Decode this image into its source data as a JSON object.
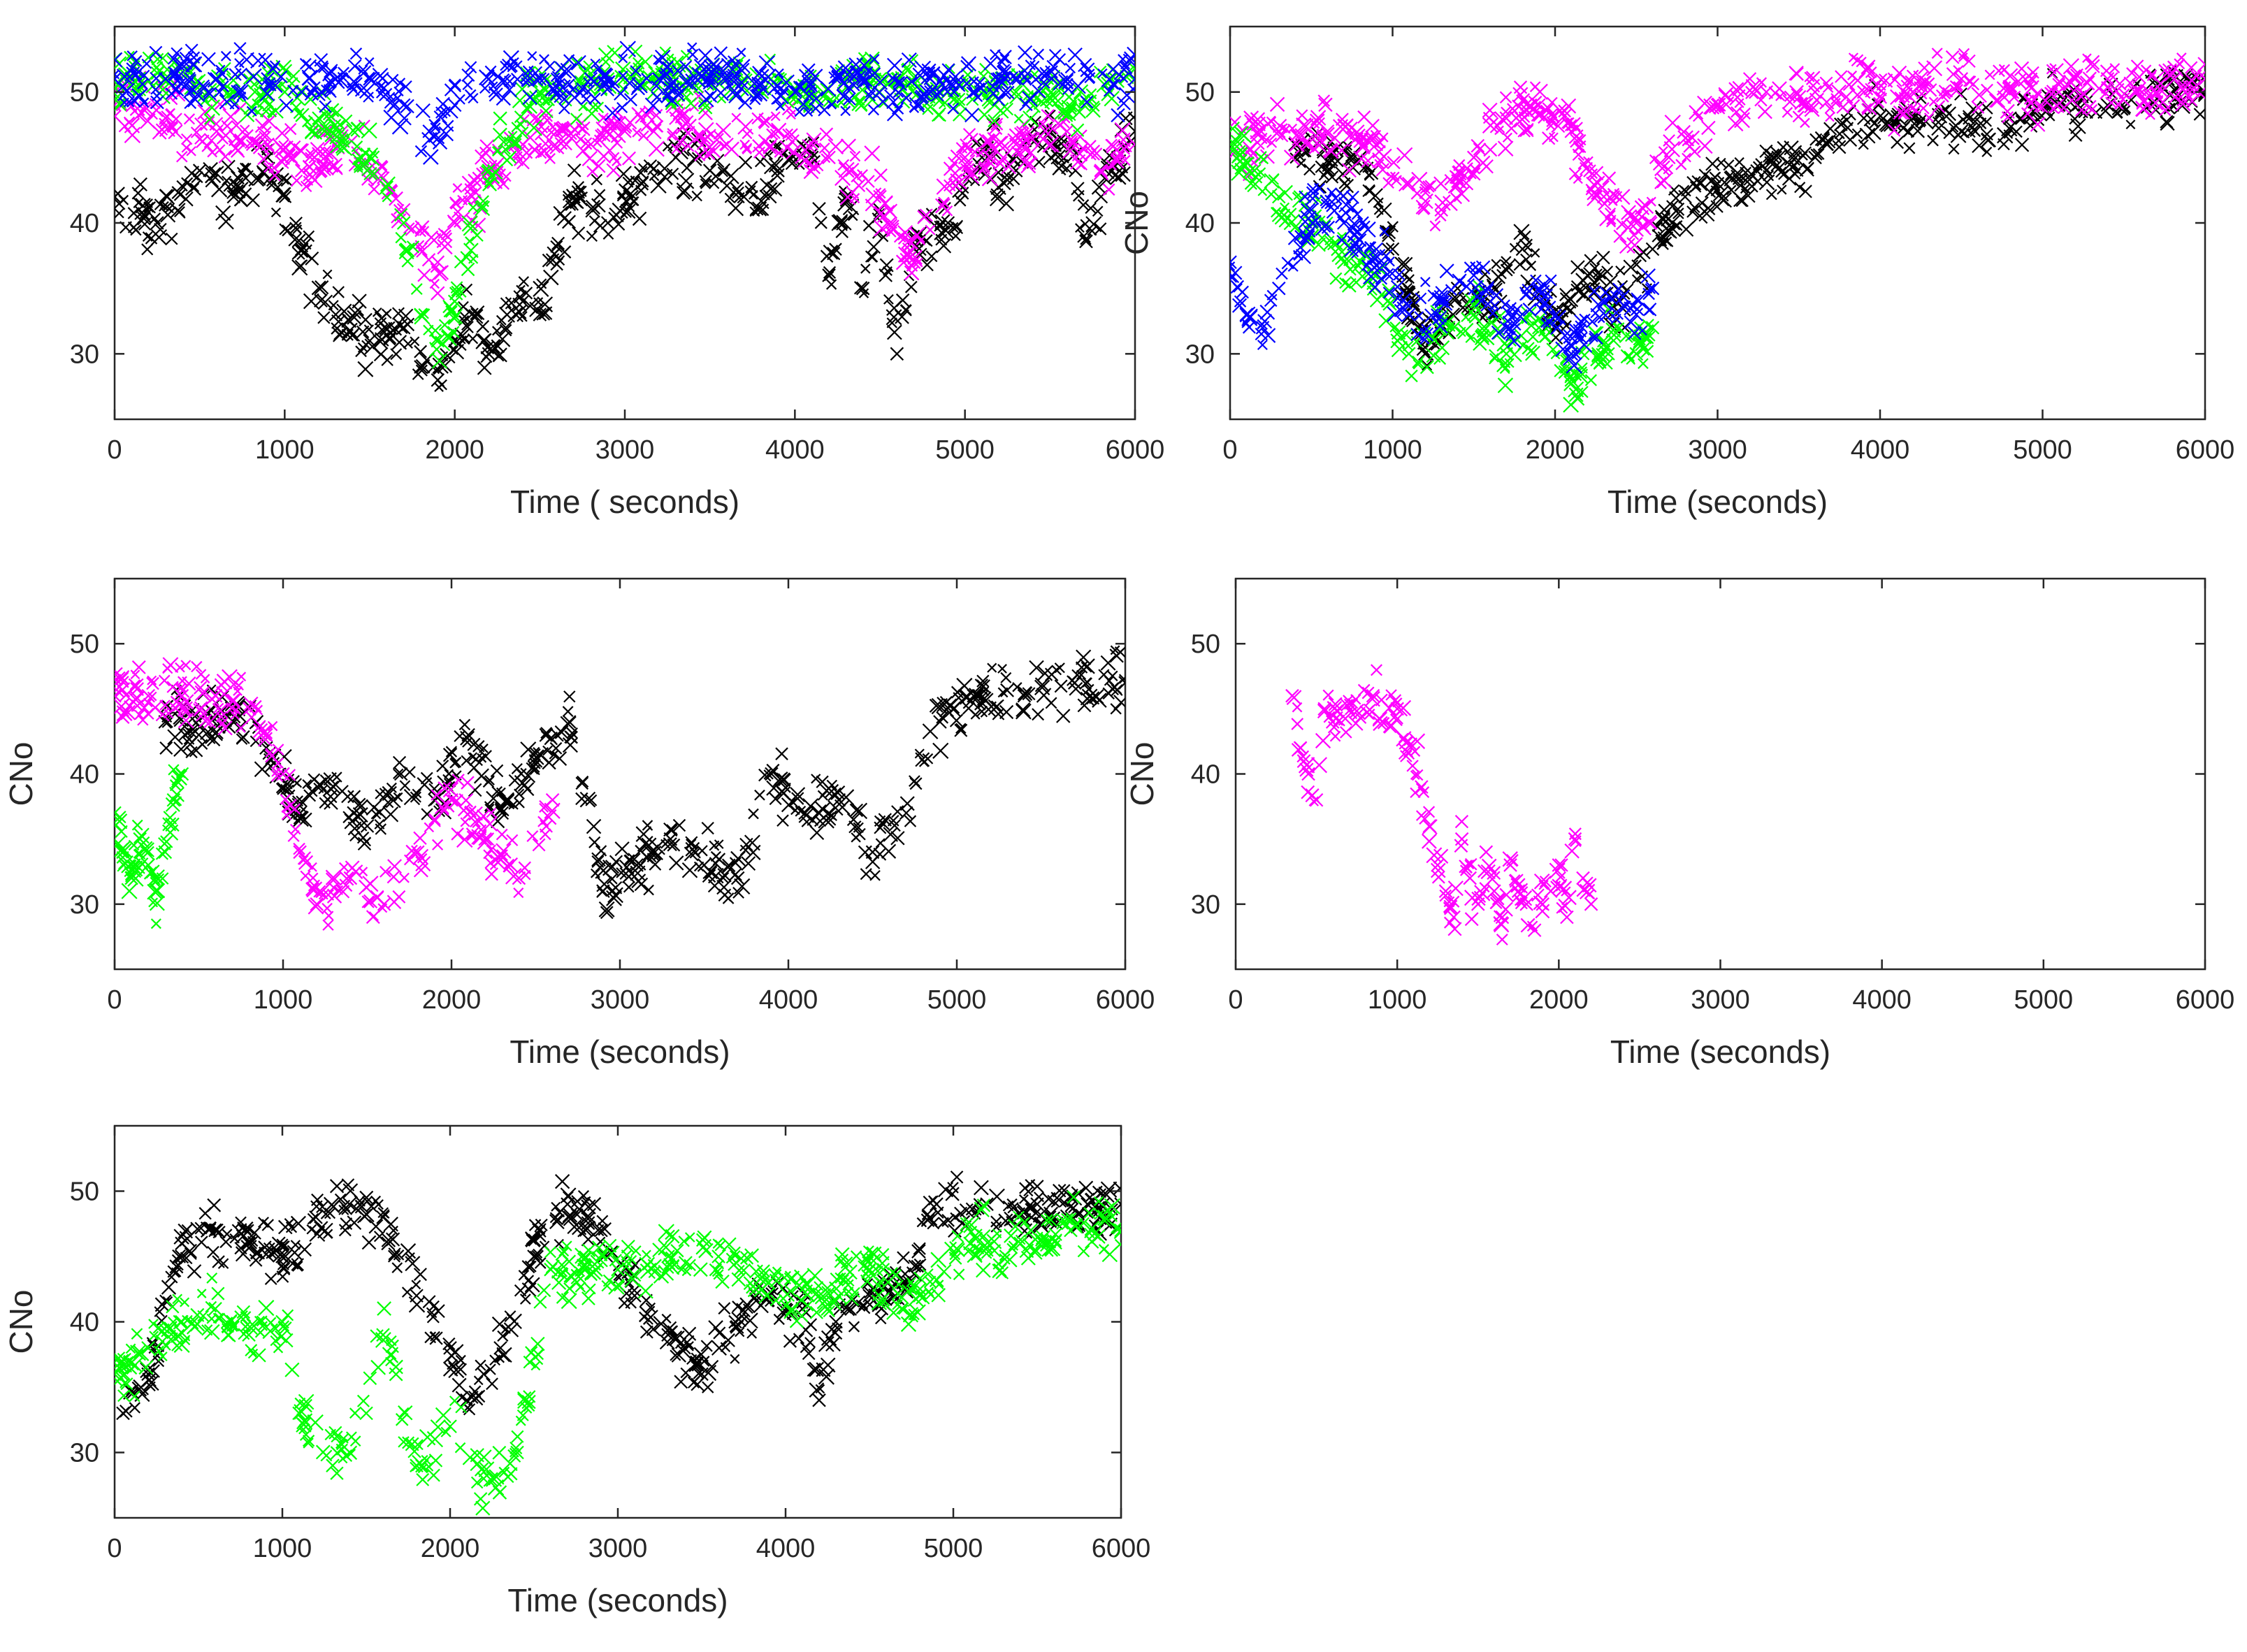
{
  "figure": {
    "marker": "x",
    "series_colors": {
      "black": "#000000",
      "magenta": "#ff00ff",
      "green": "#00ff00",
      "blue": "#0000ff"
    }
  },
  "chart_data": [
    {
      "id": "panel-top-left",
      "type": "scatter",
      "title": "",
      "xlabel": "Time ( seconds)",
      "ylabel": "",
      "xlim": [
        0,
        6000
      ],
      "ylim": [
        25,
        55
      ],
      "xticks": [
        0,
        1000,
        2000,
        3000,
        4000,
        5000,
        6000
      ],
      "yticks": [
        30,
        40,
        50
      ],
      "grid": false,
      "series": [
        {
          "name": "black",
          "color": "#000000",
          "x": [
            0,
            250,
            500,
            700,
            900,
            1100,
            1300,
            1500,
            1700,
            1800,
            1900,
            2000,
            2100,
            2200,
            2300,
            2400,
            2500,
            2700,
            2900,
            3100,
            3300,
            3500,
            3700,
            3900,
            4100,
            4200,
            4300,
            4400,
            4500,
            4600,
            4700,
            4900,
            5100,
            5300,
            5500,
            5650,
            5700,
            5800,
            5900,
            6000
          ],
          "y": [
            42,
            40,
            44,
            42,
            45,
            38,
            33,
            31,
            32,
            29,
            28,
            31,
            33,
            30,
            32,
            34,
            33,
            42,
            40,
            43,
            45,
            44,
            42,
            44,
            45,
            36,
            42,
            35,
            41,
            30,
            38,
            40,
            45,
            44,
            47,
            44,
            39,
            42,
            45,
            47
          ]
        },
        {
          "name": "magenta",
          "color": "#ff00ff",
          "x": [
            0,
            300,
            600,
            900,
            1100,
            1300,
            1500,
            1700,
            1800,
            1900,
            2000,
            2200,
            2400,
            2600,
            2800,
            3000,
            3300,
            3600,
            3900,
            4200,
            4500,
            4700,
            5000,
            5300,
            5600,
            5800,
            6000
          ],
          "y": [
            49,
            48,
            47,
            46,
            44,
            46,
            45,
            41,
            38,
            37,
            40,
            44,
            46,
            47,
            46,
            47,
            48,
            46,
            47,
            45,
            42,
            37,
            45,
            46,
            47,
            44,
            46
          ]
        },
        {
          "name": "green",
          "color": "#00ff00",
          "x": [
            0,
            300,
            700,
            1000,
            1200,
            1500,
            1700,
            1800,
            1900,
            2000,
            2200,
            2500,
            2900,
            3300,
            3700,
            4100,
            4500,
            4900,
            5300,
            5700,
            6000
          ],
          "y": [
            51,
            51,
            50,
            50,
            48,
            45,
            40,
            33,
            31,
            34,
            44,
            50,
            51,
            51,
            51,
            50,
            51,
            50,
            50,
            49,
            51
          ]
        },
        {
          "name": "blue",
          "color": "#0000ff",
          "x": [
            0,
            300,
            600,
            900,
            1100,
            1300,
            1500,
            1700,
            1850,
            2000,
            2200,
            2500,
            2800,
            3200,
            3600,
            4000,
            4400,
            4800,
            5200,
            5600,
            6000
          ],
          "y": [
            51,
            51,
            51,
            51,
            50,
            51,
            51,
            49,
            47,
            49,
            51,
            51,
            51,
            51,
            51,
            50,
            51,
            50,
            51,
            51,
            51
          ]
        }
      ]
    },
    {
      "id": "panel-top-right",
      "type": "scatter",
      "title": "",
      "xlabel": "Time (seconds)",
      "ylabel": "CNo",
      "xlim": [
        0,
        6000
      ],
      "ylim": [
        25,
        55
      ],
      "xticks": [
        0,
        1000,
        2000,
        3000,
        4000,
        5000,
        6000
      ],
      "yticks": [
        30,
        40,
        50
      ],
      "grid": false,
      "series": [
        {
          "name": "black",
          "color": "#000000",
          "x": [
            400,
            600,
            800,
            1000,
            1200,
            1400,
            1600,
            1800,
            2000,
            2200,
            2400,
            2600,
            2800,
            3000,
            3300,
            3600,
            3900,
            4200,
            4500,
            4800,
            5100,
            5400,
            5700,
            6000
          ],
          "y": [
            46,
            44,
            45,
            38,
            30,
            35,
            34,
            38,
            32,
            36,
            34,
            38,
            42,
            43,
            44,
            45,
            48,
            48,
            47,
            48,
            49,
            49,
            50,
            50
          ]
        },
        {
          "name": "magenta",
          "color": "#ff00ff",
          "x": [
            0,
            300,
            600,
            900,
            1100,
            1300,
            1500,
            1700,
            1900,
            2100,
            2300,
            2500,
            2700,
            3000,
            3300,
            3600,
            3900,
            4200,
            4500,
            4800,
            5100,
            5400,
            5700,
            6000
          ],
          "y": [
            46,
            47,
            47,
            46,
            43,
            41,
            45,
            48,
            49,
            47,
            42,
            40,
            45,
            49,
            50,
            50,
            50,
            50,
            51,
            50,
            50,
            51,
            50,
            51
          ]
        },
        {
          "name": "green",
          "color": "#00ff00",
          "x": [
            0,
            150,
            300,
            500,
            700,
            900,
            1100,
            1300,
            1500,
            1700,
            1900,
            2100,
            2300,
            2500,
            2600
          ],
          "y": [
            46,
            44,
            42,
            40,
            37,
            36,
            30,
            32,
            33,
            30,
            32,
            28,
            31,
            30,
            32
          ]
        },
        {
          "name": "blue",
          "color": "#0000ff",
          "x": [
            0,
            100,
            200,
            300,
            500,
            700,
            900,
            1100,
            1300,
            1500,
            1700,
            1900,
            2100,
            2300,
            2500,
            2600
          ],
          "y": [
            37,
            33,
            32,
            35,
            41,
            40,
            38,
            33,
            34,
            36,
            32,
            35,
            30,
            34,
            33,
            35
          ]
        }
      ]
    },
    {
      "id": "panel-middle-left",
      "type": "scatter",
      "title": "",
      "xlabel": "Time (seconds)",
      "ylabel": "CNo",
      "xlim": [
        0,
        6000
      ],
      "ylim": [
        25,
        55
      ],
      "xticks": [
        0,
        1000,
        2000,
        3000,
        4000,
        5000,
        6000
      ],
      "yticks": [
        30,
        40,
        50
      ],
      "grid": false,
      "series": [
        {
          "name": "black",
          "color": "#000000",
          "x": [
            300,
            500,
            700,
            900,
            1100,
            1300,
            1500,
            1700,
            1900,
            2100,
            2300,
            2500,
            2700,
            2900,
            3100,
            3300,
            3500,
            3700,
            3900,
            4100,
            4300,
            4500,
            4700,
            4900,
            5100,
            5400,
            5700,
            6000
          ],
          "y": [
            44,
            43,
            45,
            42,
            37,
            39,
            36,
            40,
            38,
            43,
            37,
            41,
            44,
            31,
            33,
            35,
            33,
            32,
            40,
            37,
            38,
            34,
            37,
            44,
            46,
            46,
            47,
            47
          ]
        },
        {
          "name": "magenta",
          "color": "#ff00ff",
          "x": [
            0,
            200,
            400,
            600,
            800,
            900,
            1000,
            1100,
            1200,
            1400,
            1600,
            1800,
            2000,
            2200,
            2400,
            2600
          ],
          "y": [
            46,
            46,
            46,
            46,
            45,
            43,
            40,
            34,
            30,
            32,
            30,
            34,
            38,
            35,
            32,
            38
          ]
        },
        {
          "name": "green",
          "color": "#00ff00",
          "x": [
            0,
            50,
            100,
            150,
            200,
            250,
            300,
            350,
            400
          ],
          "y": [
            37,
            34,
            32,
            35,
            33,
            31,
            34,
            38,
            40
          ]
        }
      ]
    },
    {
      "id": "panel-middle-right",
      "type": "scatter",
      "title": "",
      "xlabel": "Time (seconds)",
      "ylabel": "CNo",
      "xlim": [
        0,
        6000
      ],
      "ylim": [
        25,
        55
      ],
      "xticks": [
        0,
        1000,
        2000,
        3000,
        4000,
        5000,
        6000
      ],
      "yticks": [
        30,
        40,
        50
      ],
      "grid": false,
      "series": [
        {
          "name": "magenta",
          "color": "#ff00ff",
          "x": [
            350,
            400,
            450,
            500,
            550,
            600,
            850,
            1000,
            1150,
            1200,
            1250,
            1300,
            1350,
            1400,
            1450,
            1500,
            1550,
            1600,
            1650,
            1700,
            1750,
            1800,
            1850,
            1900,
            1950,
            2000,
            2050,
            2100,
            2150,
            2200
          ],
          "y": [
            46,
            42,
            40,
            38,
            45,
            44,
            46,
            45,
            39,
            36,
            33,
            31,
            29,
            35,
            32,
            30,
            34,
            31,
            29,
            33,
            31,
            30,
            28,
            30,
            31,
            33,
            29,
            35,
            32,
            30
          ]
        }
      ]
    },
    {
      "id": "panel-bottom-left",
      "type": "scatter",
      "title": "",
      "xlabel": "Time (seconds)",
      "ylabel": "CNo",
      "xlim": [
        0,
        6000
      ],
      "ylim": [
        25,
        55
      ],
      "xticks": [
        0,
        1000,
        2000,
        3000,
        4000,
        5000,
        6000
      ],
      "yticks": [
        30,
        40,
        50
      ],
      "grid": false,
      "series": [
        {
          "name": "black",
          "color": "#000000",
          "x": [
            50,
            200,
            400,
            600,
            800,
            1000,
            1200,
            1400,
            1600,
            1800,
            2000,
            2100,
            2200,
            2300,
            2500,
            2700,
            2900,
            3100,
            3300,
            3500,
            3700,
            3900,
            4100,
            4200,
            4300,
            4500,
            4700,
            4900,
            5200,
            5500,
            5800,
            6000
          ],
          "y": [
            33,
            36,
            46,
            47,
            46,
            45,
            48,
            49,
            48,
            42,
            38,
            34,
            36,
            38,
            45,
            49,
            47,
            42,
            39,
            36,
            40,
            42,
            41,
            34,
            40,
            42,
            43,
            49,
            49,
            49,
            49,
            49
          ]
        },
        {
          "name": "green",
          "color": "#00ff00",
          "x": [
            0,
            200,
            400,
            600,
            800,
            1000,
            1100,
            1300,
            1500,
            1600,
            1800,
            2000,
            2200,
            2400,
            2600,
            2800,
            3000,
            3300,
            3600,
            3900,
            4200,
            4500,
            4800,
            5100,
            5400,
            5700,
            6000
          ],
          "y": [
            36,
            38,
            40,
            41,
            39,
            40,
            33,
            29,
            33,
            39,
            29,
            32,
            28,
            30,
            44,
            44,
            44,
            45,
            45,
            43,
            42,
            44,
            42,
            46,
            46,
            47,
            47
          ]
        }
      ]
    }
  ]
}
